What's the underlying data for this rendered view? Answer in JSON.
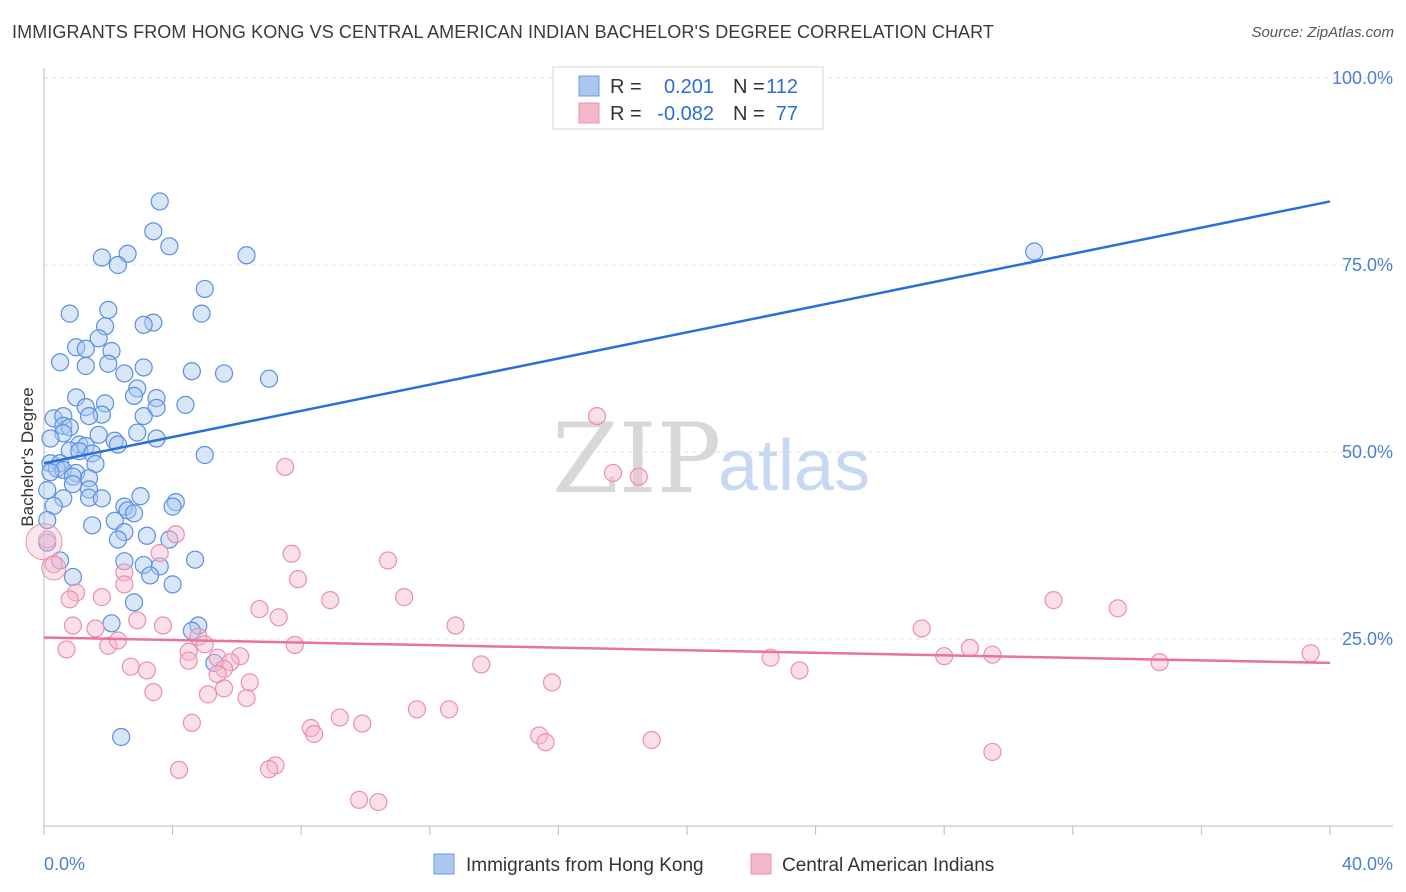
{
  "title": "IMMIGRANTS FROM HONG KONG VS CENTRAL AMERICAN INDIAN BACHELOR'S DEGREE CORRELATION CHART",
  "source": "Source: ZipAtlas.com",
  "watermark": {
    "zip": "ZIP",
    "atlas": "atlas"
  },
  "colors": {
    "blue": "#2a6fd8",
    "blue_fill": "#a9c7ef",
    "pink": "#e8749b",
    "pink_fill": "#f4b7cb",
    "grid": "#e2e2e2"
  },
  "chart_data": {
    "type": "scatter",
    "xlabel": "",
    "ylabel": "Bachelor's Degree",
    "xlim": [
      0,
      40
    ],
    "ylim": [
      0,
      100
    ],
    "x_tick_labels": [
      "0.0%",
      "40.0%"
    ],
    "y_tick_labels": [
      "25.0%",
      "50.0%",
      "75.0%",
      "100.0%"
    ],
    "y_tick_values": [
      25,
      50,
      75,
      100
    ],
    "legend": {
      "rows": [
        {
          "r_label": "R =",
          "r_value": "0.201",
          "n_label": "N =",
          "n_value": "112"
        },
        {
          "r_label": "R =",
          "r_value": "-0.082",
          "n_label": "N =",
          "n_value": "77"
        }
      ]
    },
    "series": [
      {
        "name": "Immigrants from Hong Kong",
        "color": "#2a6fd8",
        "trend": {
          "x0": 0,
          "y0": 48.5,
          "x1": 40,
          "y1": 83.5
        },
        "points": [
          [
            3.6,
            83.5
          ],
          [
            3.4,
            79.5
          ],
          [
            3.9,
            77.5
          ],
          [
            2.6,
            76.5
          ],
          [
            1.8,
            76
          ],
          [
            2.3,
            75
          ],
          [
            6.3,
            76.3
          ],
          [
            30.8,
            76.8
          ],
          [
            5.0,
            71.8
          ],
          [
            2.0,
            69
          ],
          [
            4.9,
            68.5
          ],
          [
            0.8,
            68.5
          ],
          [
            3.4,
            67.3
          ],
          [
            3.1,
            67
          ],
          [
            1.9,
            66.8
          ],
          [
            1.7,
            65.2
          ],
          [
            1.0,
            64
          ],
          [
            2.1,
            63.5
          ],
          [
            1.3,
            63.8
          ],
          [
            0.5,
            62
          ],
          [
            2.0,
            61.8
          ],
          [
            1.3,
            61.5
          ],
          [
            3.1,
            61.3
          ],
          [
            4.6,
            60.8
          ],
          [
            5.6,
            60.5
          ],
          [
            7.0,
            59.8
          ],
          [
            2.5,
            60.5
          ],
          [
            2.9,
            58.5
          ],
          [
            2.8,
            57.5
          ],
          [
            3.5,
            57.2
          ],
          [
            1.0,
            57.3
          ],
          [
            4.4,
            56.3
          ],
          [
            1.9,
            56.5
          ],
          [
            3.5,
            55.9
          ],
          [
            1.3,
            56
          ],
          [
            1.8,
            55
          ],
          [
            0.3,
            54.5
          ],
          [
            0.6,
            54.8
          ],
          [
            1.4,
            54.8
          ],
          [
            3.1,
            54.8
          ],
          [
            0.6,
            53.5
          ],
          [
            0.8,
            53.3
          ],
          [
            0.6,
            52.5
          ],
          [
            2.9,
            52.6
          ],
          [
            1.7,
            52.3
          ],
          [
            0.2,
            51.8
          ],
          [
            3.5,
            51.8
          ],
          [
            2.2,
            51.5
          ],
          [
            1.1,
            51
          ],
          [
            1.3,
            50.8
          ],
          [
            2.3,
            51
          ],
          [
            0.8,
            50.2
          ],
          [
            1.1,
            50.1
          ],
          [
            5.0,
            49.6
          ],
          [
            1.5,
            49.8
          ],
          [
            0.2,
            48.5
          ],
          [
            0.5,
            48.5
          ],
          [
            1.6,
            48.4
          ],
          [
            0.4,
            47.8
          ],
          [
            0.6,
            47.6
          ],
          [
            0.2,
            47.3
          ],
          [
            1.0,
            47.2
          ],
          [
            0.9,
            46.7
          ],
          [
            1.4,
            46.5
          ],
          [
            0.9,
            45.7
          ],
          [
            1.4,
            45
          ],
          [
            0.1,
            44.9
          ],
          [
            1.4,
            43.9
          ],
          [
            1.8,
            43.8
          ],
          [
            0.6,
            43.8
          ],
          [
            3.0,
            44.1
          ],
          [
            4.1,
            43.3
          ],
          [
            0.3,
            42.8
          ],
          [
            2.5,
            42.7
          ],
          [
            4.0,
            42.7
          ],
          [
            2.6,
            42.2
          ],
          [
            2.8,
            41.8
          ],
          [
            2.2,
            40.8
          ],
          [
            0.1,
            40.9
          ],
          [
            1.5,
            40.2
          ],
          [
            2.5,
            39.3
          ],
          [
            3.2,
            38.8
          ],
          [
            2.3,
            38.3
          ],
          [
            3.9,
            38.3
          ],
          [
            0.1,
            37.9
          ],
          [
            2.5,
            35.4
          ],
          [
            4.7,
            35.6
          ],
          [
            3.1,
            34.9
          ],
          [
            3.6,
            34.7
          ],
          [
            3.3,
            33.5
          ],
          [
            0.9,
            33.3
          ],
          [
            4.0,
            32.3
          ],
          [
            2.8,
            29.9
          ],
          [
            4.8,
            26.8
          ],
          [
            2.1,
            27.1
          ],
          [
            4.6,
            26.1
          ],
          [
            5.3,
            21.8
          ],
          [
            0.5,
            35.5
          ],
          [
            2.4,
            11.9
          ]
        ]
      },
      {
        "name": "Central American Indians",
        "color": "#e8749b",
        "trend": {
          "x0": 0,
          "y0": 25.2,
          "x1": 40,
          "y1": 21.8
        },
        "points": [
          [
            17.2,
            54.8
          ],
          [
            7.5,
            48
          ],
          [
            17.7,
            47.2
          ],
          [
            18.5,
            46.7
          ],
          [
            0.1,
            38.3
          ],
          [
            4.1,
            39
          ],
          [
            3.6,
            36.5
          ],
          [
            7.7,
            36.4
          ],
          [
            10.7,
            35.5
          ],
          [
            0.3,
            35
          ],
          [
            2.5,
            33.9
          ],
          [
            7.9,
            33
          ],
          [
            2.5,
            32.3
          ],
          [
            1.0,
            31.2
          ],
          [
            0.8,
            30.3
          ],
          [
            1.8,
            30.6
          ],
          [
            11.2,
            30.6
          ],
          [
            8.9,
            30.2
          ],
          [
            31.4,
            30.2
          ],
          [
            33.4,
            29.1
          ],
          [
            6.7,
            29
          ],
          [
            7.3,
            27.9
          ],
          [
            0.9,
            26.8
          ],
          [
            2.9,
            27.5
          ],
          [
            3.7,
            26.8
          ],
          [
            1.6,
            26.4
          ],
          [
            12.8,
            26.8
          ],
          [
            27.3,
            26.4
          ],
          [
            4.8,
            25.3
          ],
          [
            5.0,
            24.3
          ],
          [
            7.8,
            24.2
          ],
          [
            2.0,
            24.1
          ],
          [
            2.3,
            24.8
          ],
          [
            0.7,
            23.6
          ],
          [
            4.5,
            23.3
          ],
          [
            28.8,
            23.8
          ],
          [
            29.5,
            22.9
          ],
          [
            28.0,
            22.7
          ],
          [
            39.4,
            23.1
          ],
          [
            5.4,
            22.5
          ],
          [
            6.1,
            22.7
          ],
          [
            5.8,
            21.9
          ],
          [
            4.5,
            22.1
          ],
          [
            22.6,
            22.5
          ],
          [
            34.7,
            21.9
          ],
          [
            13.6,
            21.6
          ],
          [
            2.7,
            21.3
          ],
          [
            5.6,
            21
          ],
          [
            23.5,
            20.8
          ],
          [
            3.2,
            20.8
          ],
          [
            5.4,
            20.3
          ],
          [
            6.4,
            19.2
          ],
          [
            15.8,
            19.2
          ],
          [
            3.4,
            17.9
          ],
          [
            5.1,
            17.6
          ],
          [
            5.6,
            18.4
          ],
          [
            6.3,
            17.1
          ],
          [
            11.6,
            15.6
          ],
          [
            12.6,
            15.6
          ],
          [
            9.2,
            14.5
          ],
          [
            9.9,
            13.7
          ],
          [
            4.6,
            13.8
          ],
          [
            8.3,
            13.1
          ],
          [
            15.4,
            12.1
          ],
          [
            8.4,
            12.3
          ],
          [
            18.9,
            11.5
          ],
          [
            15.6,
            11.2
          ],
          [
            29.5,
            9.9
          ],
          [
            7.2,
            8.1
          ],
          [
            7.0,
            7.6
          ],
          [
            4.2,
            7.5
          ],
          [
            9.8,
            3.5
          ],
          [
            10.4,
            3.2
          ]
        ]
      }
    ]
  }
}
